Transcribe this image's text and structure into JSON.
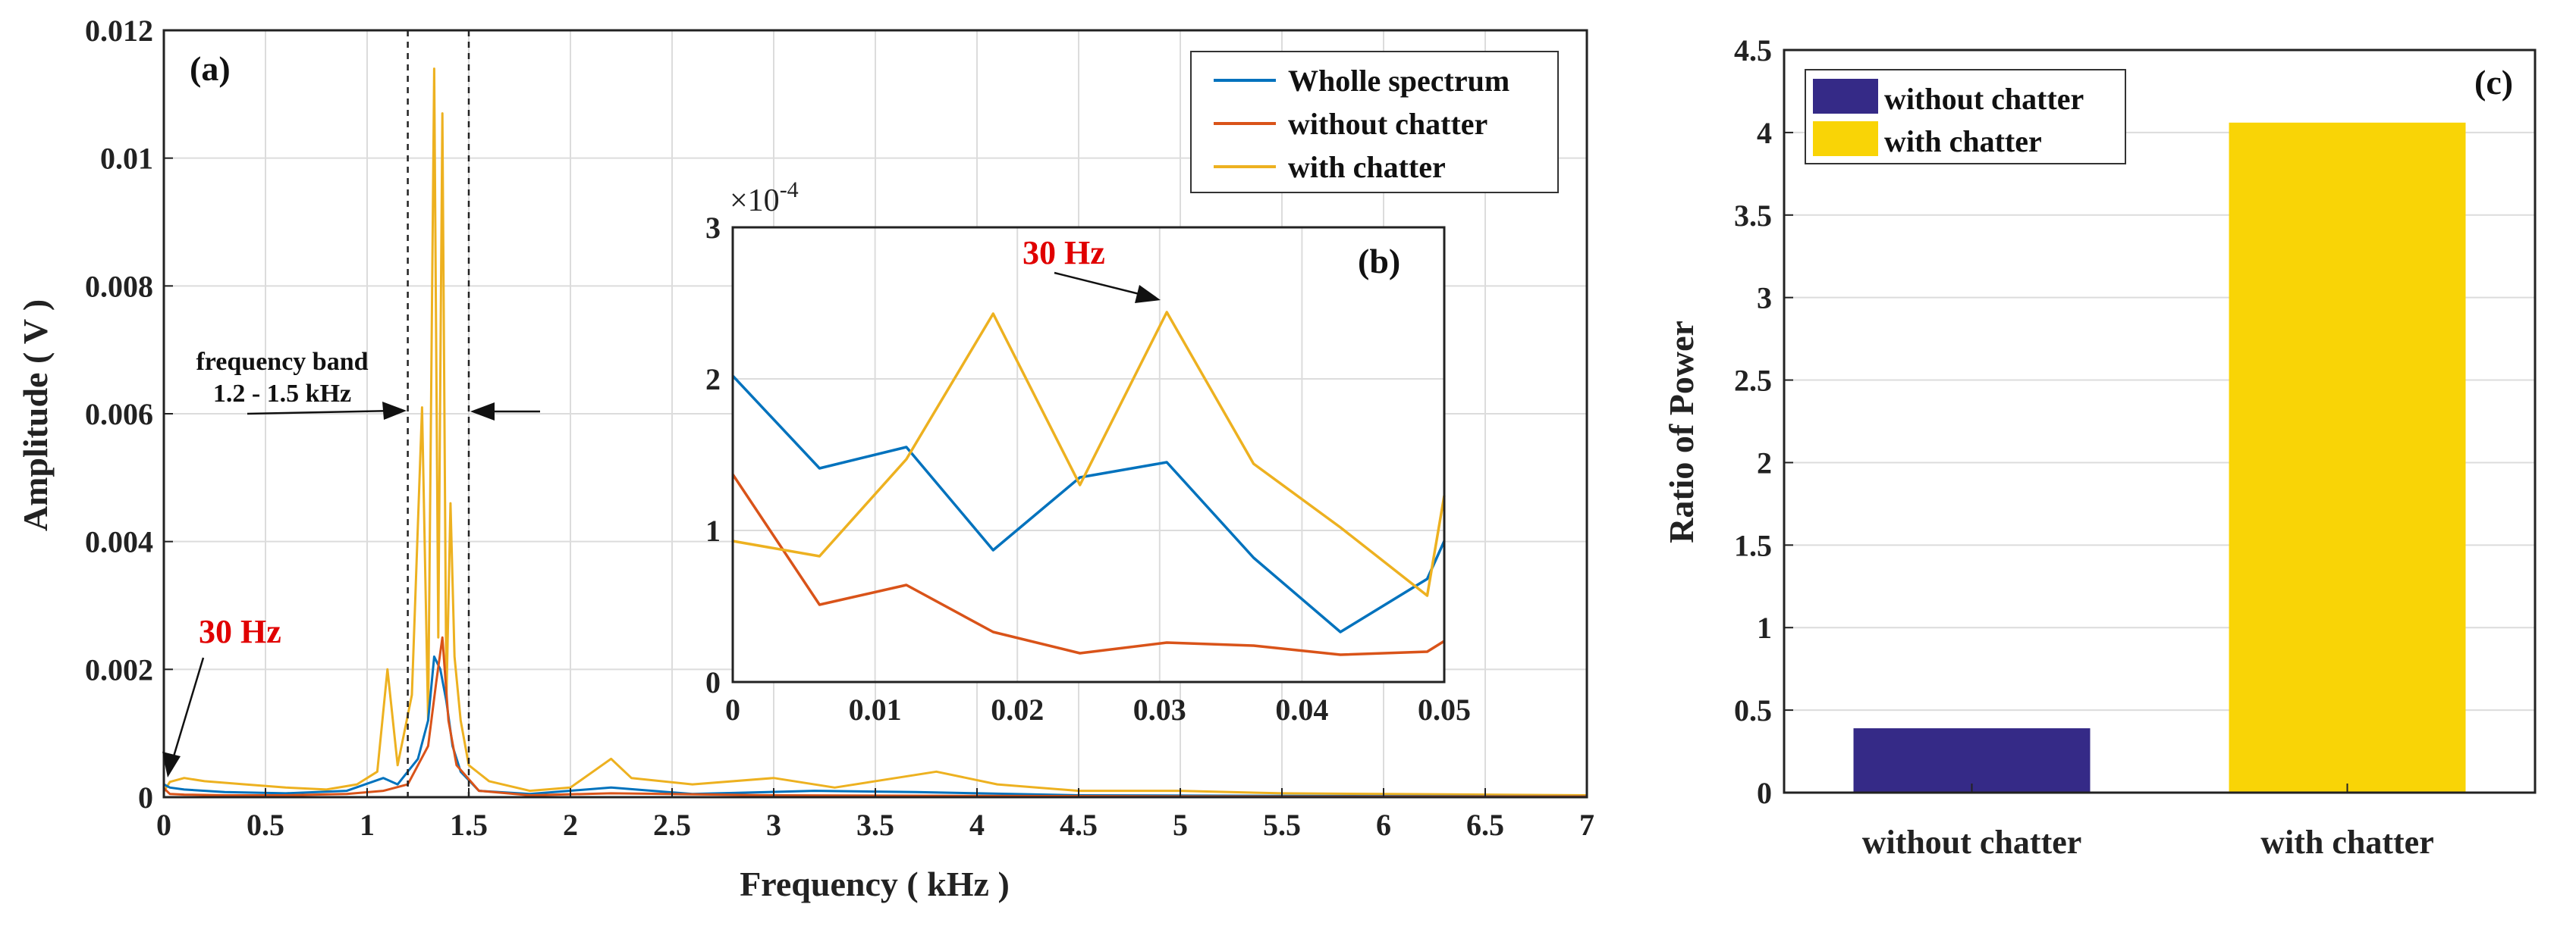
{
  "colors": {
    "whole": "#0072BD",
    "without": "#D95319",
    "with": "#EDB120",
    "bar_without": "#352A87",
    "bar_with": "#F9D406",
    "grid": "#dcdcdc",
    "axis": "#222222"
  },
  "chart_data": [
    {
      "type": "line",
      "panel_label": "(a)",
      "xlabel": "Frequency ( kHz )",
      "ylabel": "Amplitude ( V )",
      "xlim": [
        0,
        7
      ],
      "ylim": [
        0,
        0.012
      ],
      "xticks": [
        "0",
        "0.5",
        "1",
        "1.5",
        "2",
        "2.5",
        "3",
        "3.5",
        "4",
        "4.5",
        "5",
        "5.5",
        "6",
        "6.5",
        "7"
      ],
      "yticks": [
        "0",
        "0.002",
        "0.004",
        "0.006",
        "0.008",
        "0.01",
        "0.012"
      ],
      "grid": true,
      "legend_position": "top-right",
      "series": [
        {
          "name": "Wholle spectrum",
          "x": [
            0,
            0.03,
            0.1,
            0.3,
            0.6,
            0.9,
            1.08,
            1.15,
            1.25,
            1.3,
            1.33,
            1.36,
            1.39,
            1.42,
            1.46,
            1.55,
            1.8,
            2.2,
            2.6,
            3.2,
            3.7,
            4.5,
            5.5,
            7
          ],
          "y": [
            0.0002,
            0.00015,
            0.00012,
            8e-05,
            6e-05,
            0.0001,
            0.0003,
            0.0002,
            0.0006,
            0.0012,
            0.0022,
            0.002,
            0.0015,
            0.0008,
            0.0004,
            0.0001,
            5e-05,
            0.00015,
            5e-05,
            0.0001,
            8e-05,
            3e-05,
            2e-05,
            1e-05
          ]
        },
        {
          "name": "without chatter",
          "x": [
            0,
            0.03,
            0.1,
            0.3,
            0.6,
            0.9,
            1.08,
            1.2,
            1.3,
            1.34,
            1.37,
            1.4,
            1.44,
            1.55,
            1.8,
            2.2,
            3.0,
            4.0,
            5.5,
            7
          ],
          "y": [
            0.00014,
            5e-05,
            4e-05,
            3e-05,
            3e-05,
            5e-05,
            0.0001,
            0.0002,
            0.0008,
            0.0018,
            0.0025,
            0.0012,
            0.0005,
            0.0001,
            3e-05,
            6e-05,
            3e-05,
            2e-05,
            1e-05,
            1e-05
          ]
        },
        {
          "name": "with chatter",
          "x": [
            0,
            0.03,
            0.1,
            0.2,
            0.4,
            0.6,
            0.8,
            0.95,
            1.05,
            1.1,
            1.15,
            1.22,
            1.27,
            1.3,
            1.33,
            1.35,
            1.37,
            1.39,
            1.41,
            1.43,
            1.46,
            1.5,
            1.6,
            1.8,
            2.0,
            2.2,
            2.3,
            2.6,
            3.0,
            3.3,
            3.8,
            4.1,
            4.5,
            5.0,
            5.5,
            6.0,
            6.5,
            7
          ],
          "y": [
            9e-05,
            0.00024,
            0.0003,
            0.00025,
            0.0002,
            0.00015,
            0.00012,
            0.0002,
            0.0004,
            0.002,
            0.0005,
            0.0016,
            0.0061,
            0.0012,
            0.0114,
            0.0025,
            0.0107,
            0.0015,
            0.0046,
            0.0022,
            0.0012,
            0.0005,
            0.00025,
            0.0001,
            0.00015,
            0.0006,
            0.0003,
            0.0002,
            0.0003,
            0.00015,
            0.0004,
            0.0002,
            0.0001,
            0.0001,
            6e-05,
            5e-05,
            4e-05,
            3e-05
          ]
        }
      ],
      "annotations": {
        "band_label_line1": "frequency band",
        "band_label_line2": "1.2 - 1.5 kHz",
        "band_lines_x": [
          1.2,
          1.5
        ],
        "peak_label": "30 Hz"
      },
      "inset": {
        "type": "line",
        "panel_label": "(b)",
        "exponent_label": "×10",
        "exponent_power": "-4",
        "xlim": [
          0,
          0.05
        ],
        "ylim": [
          0,
          3
        ],
        "xticks": [
          "0",
          "0.01",
          "0.02",
          "0.03",
          "0.04",
          "0.05"
        ],
        "yticks": [
          "0",
          "1",
          "2",
          "3"
        ],
        "peak_label": "30 Hz",
        "series": [
          {
            "name": "Wholle spectrum",
            "x": [
              0,
              0.0061,
              0.0122,
              0.0183,
              0.0244,
              0.0305,
              0.0366,
              0.0427,
              0.0488,
              0.05
            ],
            "y": [
              2.02,
              1.41,
              1.55,
              0.87,
              1.35,
              1.45,
              0.82,
              0.33,
              0.68,
              0.93
            ]
          },
          {
            "name": "without chatter",
            "x": [
              0,
              0.0061,
              0.0122,
              0.0183,
              0.0244,
              0.0305,
              0.0366,
              0.0427,
              0.0488,
              0.05
            ],
            "y": [
              1.37,
              0.51,
              0.64,
              0.33,
              0.19,
              0.26,
              0.24,
              0.18,
              0.2,
              0.27
            ]
          },
          {
            "name": "with chatter",
            "x": [
              0,
              0.0061,
              0.0122,
              0.0183,
              0.0244,
              0.0305,
              0.0366,
              0.0427,
              0.0488,
              0.05
            ],
            "y": [
              0.93,
              0.83,
              1.47,
              2.43,
              1.3,
              2.44,
              1.44,
              1.02,
              0.57,
              1.23
            ]
          }
        ]
      }
    },
    {
      "type": "bar",
      "panel_label": "(c)",
      "ylabel": "Ratio of Power",
      "categories": [
        "without chatter",
        "with chatter"
      ],
      "values": [
        0.39,
        4.06
      ],
      "ylim": [
        0,
        4.5
      ],
      "yticks": [
        "0",
        "0.5",
        "1",
        "1.5",
        "2",
        "2.5",
        "3",
        "3.5",
        "4",
        "4.5"
      ],
      "grid": true,
      "legend_position": "top-left",
      "legend": [
        "without chatter",
        "with chatter"
      ]
    }
  ]
}
